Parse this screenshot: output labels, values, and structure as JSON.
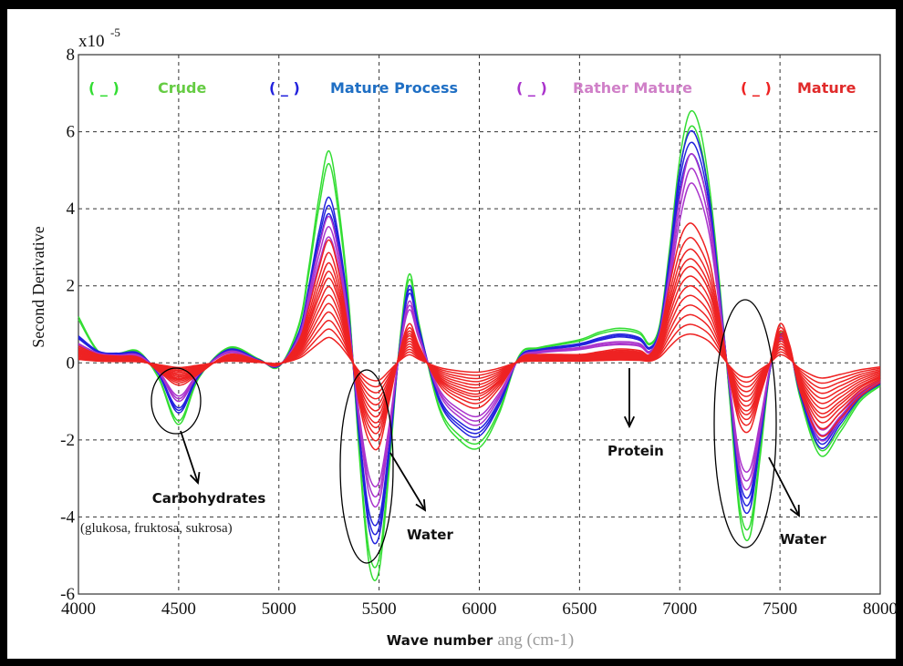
{
  "chart_data": {
    "type": "line",
    "title": "",
    "xlabel": "Wave number",
    "xlabel_obscured": "Bilangan Gelombang (cm-1)",
    "ylabel": "Second Derivative",
    "y_exponent": "x10",
    "y_exponent_power": "-5",
    "xlim": [
      4000,
      8000
    ],
    "ylim": [
      -6,
      8
    ],
    "xticks": [
      4000,
      4500,
      5000,
      5500,
      6000,
      6500,
      7000,
      7500,
      8000
    ],
    "yticks": [
      -6,
      -4,
      -2,
      0,
      2,
      4,
      6,
      8
    ],
    "grid": true,
    "legend_position": "top",
    "legend": [
      {
        "name": "Crude",
        "swatch": "( _ )",
        "color": "#33dd33",
        "text_color": "#66cc44"
      },
      {
        "name": "Mature Process",
        "swatch": "( _ )",
        "color": "#2222dd",
        "text_color": "#1f6fc4"
      },
      {
        "name": "Rather Mature",
        "swatch": "( _ )",
        "color": "#aa33cc",
        "text_color": "#d080c8"
      },
      {
        "name": "Mature",
        "swatch": "( _ )",
        "color": "#ee2222",
        "text_color": "#e02a2a"
      }
    ],
    "x": [
      4000,
      4100,
      4200,
      4300,
      4400,
      4500,
      4600,
      4750,
      4900,
      5000,
      5100,
      5150,
      5200,
      5250,
      5300,
      5350,
      5400,
      5450,
      5500,
      5550,
      5600,
      5650,
      5700,
      5800,
      5900,
      6000,
      6100,
      6200,
      6300,
      6500,
      6600,
      6700,
      6800,
      6850,
      6900,
      6950,
      7000,
      7050,
      7100,
      7150,
      7200,
      7250,
      7300,
      7350,
      7400,
      7450,
      7500,
      7550,
      7600,
      7700,
      7800,
      7900,
      8000
    ],
    "series": [
      {
        "name": "Crude",
        "color": "#33dd33",
        "values": [
          1.2,
          0.3,
          0.25,
          0.3,
          -0.4,
          -1.6,
          -0.4,
          0.4,
          0.1,
          -0.1,
          1.0,
          2.5,
          4.3,
          5.5,
          4.0,
          1.5,
          -2.3,
          -5.2,
          -5.4,
          -2.8,
          0.4,
          2.3,
          1.0,
          -1.2,
          -2.0,
          -2.2,
          -1.3,
          0.2,
          0.4,
          0.6,
          0.8,
          0.9,
          0.8,
          0.5,
          1.0,
          3.0,
          5.3,
          6.5,
          6.1,
          4.5,
          2.0,
          -1.0,
          -4.0,
          -4.5,
          -2.5,
          -0.2,
          0.8,
          0.4,
          -0.9,
          -2.4,
          -1.8,
          -1.0,
          -0.6
        ]
      },
      {
        "name": "Mature Process",
        "color": "#2222dd",
        "values": [
          0.7,
          0.3,
          0.25,
          0.25,
          -0.3,
          -1.3,
          -0.35,
          0.35,
          0.08,
          -0.08,
          0.8,
          2.0,
          3.4,
          4.3,
          3.2,
          1.2,
          -1.9,
          -4.3,
          -4.5,
          -2.4,
          0.3,
          2.0,
          0.9,
          -1.0,
          -1.7,
          -1.9,
          -1.1,
          0.15,
          0.35,
          0.5,
          0.65,
          0.75,
          0.65,
          0.4,
          0.9,
          2.8,
          5.0,
          6.0,
          5.6,
          4.2,
          1.8,
          -0.8,
          -3.4,
          -3.8,
          -2.1,
          -0.2,
          0.75,
          0.35,
          -0.8,
          -2.2,
          -1.6,
          -0.9,
          -0.55
        ]
      },
      {
        "name": "Rather Mature",
        "color": "#aa33cc",
        "values": [
          0.5,
          0.25,
          0.2,
          0.2,
          -0.25,
          -1.0,
          -0.3,
          0.3,
          0.06,
          -0.06,
          0.7,
          1.8,
          3.0,
          3.8,
          2.8,
          1.0,
          -1.5,
          -3.4,
          -3.6,
          -1.9,
          0.25,
          1.6,
          0.7,
          -0.8,
          -1.4,
          -1.6,
          -0.9,
          0.12,
          0.3,
          0.4,
          0.5,
          0.55,
          0.5,
          0.3,
          0.8,
          2.4,
          4.3,
          5.4,
          5.0,
          3.8,
          1.6,
          -0.7,
          -2.9,
          -3.2,
          -1.8,
          -0.15,
          0.7,
          0.3,
          -0.7,
          -2.0,
          -1.5,
          -0.85,
          -0.5
        ]
      },
      {
        "name": "Mature",
        "color": "#ee2222",
        "values": [
          0.3,
          0.15,
          0.12,
          0.1,
          -0.15,
          -0.4,
          -0.2,
          0.15,
          0.04,
          -0.04,
          0.4,
          1.0,
          1.7,
          2.2,
          1.6,
          0.5,
          -0.7,
          -1.4,
          -1.5,
          -0.7,
          0.15,
          0.7,
          0.3,
          -0.4,
          -0.7,
          -0.8,
          -0.45,
          0.08,
          0.15,
          0.15,
          0.2,
          0.25,
          0.22,
          0.15,
          0.5,
          1.4,
          2.2,
          2.5,
          2.3,
          1.8,
          0.8,
          -0.3,
          -1.1,
          -1.2,
          -0.6,
          0.0,
          0.7,
          0.3,
          -0.5,
          -1.3,
          -1.0,
          -0.6,
          -0.35
        ]
      }
    ],
    "annotations": [
      {
        "label": "Carbohydrates",
        "sub": "(glukosa, fruktosa, sukrosa)"
      },
      {
        "label": "Water"
      },
      {
        "label": "Protein"
      },
      {
        "label": "Water"
      }
    ]
  }
}
